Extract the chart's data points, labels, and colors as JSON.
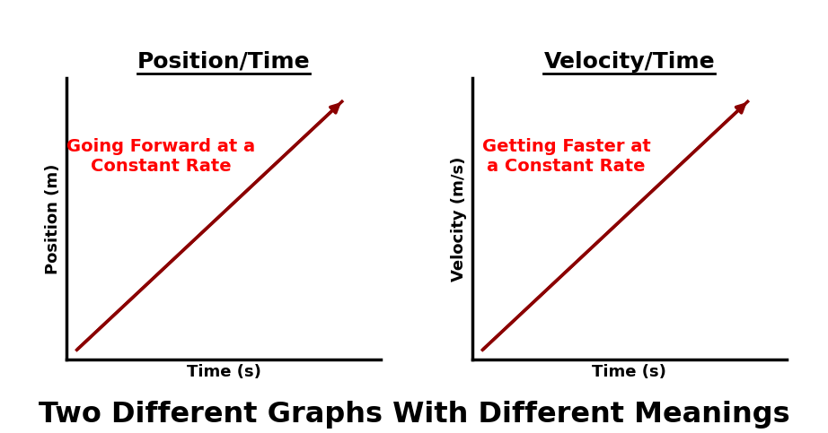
{
  "title_left": "Position/Time",
  "title_right": "Velocity/Time",
  "xlabel_left": "Time (s)",
  "ylabel_left": "Position (m)",
  "xlabel_right": "Time (s)",
  "ylabel_right": "Velocity (m/s)",
  "annotation_left_line1": "Going Forward at a",
  "annotation_left_line2": "Constant Rate",
  "annotation_right_line1": "Getting Faster at",
  "annotation_right_line2": "a Constant Rate",
  "footer_text": "Two Different Graphs With Different Meanings",
  "line_color": "#8B0000",
  "title_color": "#000000",
  "annotation_color": "#FF0000",
  "footer_color": "#000000",
  "background_color": "#FFFFFF",
  "title_fontsize": 18,
  "axis_label_fontsize": 13,
  "annotation_fontsize": 14,
  "footer_fontsize": 23,
  "spine_linewidth": 2.5,
  "data_linewidth": 2.5,
  "underline_linewidth": 2.0
}
